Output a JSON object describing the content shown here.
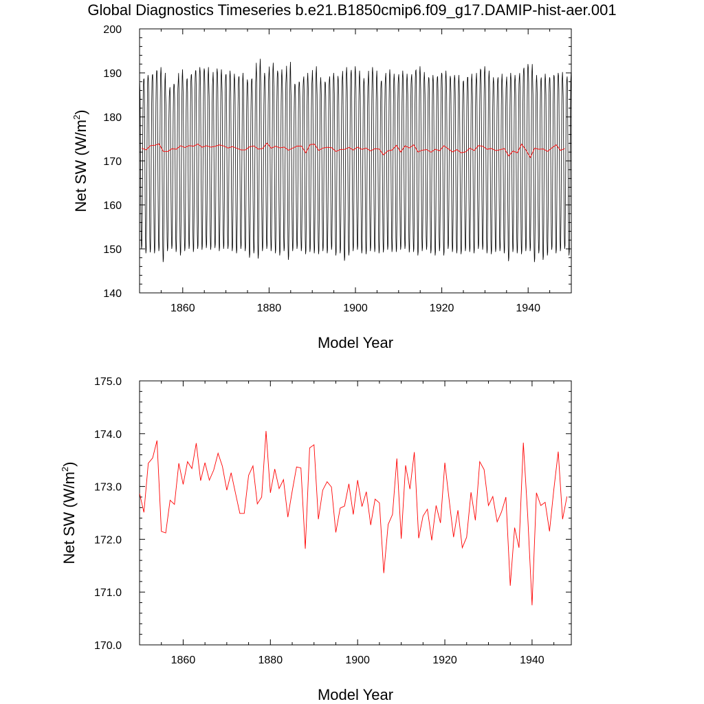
{
  "title": "Global Diagnostics Timeseries b.e21.B1850cmip6.f09_g17.DAMIP-hist-aer.001",
  "chart_data": [
    {
      "type": "line",
      "xlabel": "Model Year",
      "ylabel": "Net SW (W/m",
      "ylabel_sup": "2",
      "ylabel_close": ")",
      "xlim": [
        1850,
        1950
      ],
      "ylim": [
        140,
        200
      ],
      "xticks": [
        1860,
        1880,
        1900,
        1920,
        1940
      ],
      "yticks": [
        140,
        150,
        160,
        170,
        180,
        190,
        200
      ],
      "ytick_labels": [
        "140",
        "150",
        "160",
        "170",
        "180",
        "190",
        "200"
      ],
      "series": [
        {
          "color": "#000000",
          "kind": "monthly",
          "years": [
            1850,
            1851,
            1852,
            1853,
            1854,
            1855,
            1856,
            1857,
            1858,
            1859,
            1860,
            1861,
            1862,
            1863,
            1864,
            1865,
            1866,
            1867,
            1868,
            1869,
            1870,
            1871,
            1872,
            1873,
            1874,
            1875,
            1876,
            1877,
            1878,
            1879,
            1880,
            1881,
            1882,
            1883,
            1884,
            1885,
            1886,
            1887,
            1888,
            1889,
            1890,
            1891,
            1892,
            1893,
            1894,
            1895,
            1896,
            1897,
            1898,
            1899,
            1900,
            1901,
            1902,
            1903,
            1904,
            1905,
            1906,
            1907,
            1908,
            1909,
            1910,
            1911,
            1912,
            1913,
            1914,
            1915,
            1916,
            1917,
            1918,
            1919,
            1920,
            1921,
            1922,
            1923,
            1924,
            1925,
            1926,
            1927,
            1928,
            1929,
            1930,
            1931,
            1932,
            1933,
            1934,
            1935,
            1936,
            1937,
            1938,
            1939,
            1940,
            1941,
            1942,
            1943,
            1944,
            1945,
            1946,
            1947,
            1948,
            1949
          ],
          "maxima": [
            188.5,
            189.5,
            189.5,
            190.5,
            191.3,
            190.0,
            186.0,
            187.5,
            188.0,
            190.8,
            188.5,
            189.5,
            190.5,
            191.3,
            191.0,
            191.3,
            188.5,
            191.0,
            190.8,
            189.5,
            190.5,
            189.8,
            189.0,
            190.0,
            188.5,
            188.5,
            189.5,
            193.2,
            190.0,
            189.8,
            192.3,
            190.5,
            190.8,
            189.2,
            192.5,
            187.5,
            188.0,
            188.5,
            190.0,
            188.5,
            191.5,
            189.0,
            188.0,
            188.5,
            190.0,
            189.3,
            189.0,
            191.3,
            190.0,
            191.5,
            190.5,
            188.8,
            188.5,
            191.3,
            190.5,
            188.0,
            189.0,
            190.8,
            189.8,
            189.0,
            190.5,
            189.8,
            189.0,
            190.5,
            191.5,
            190.2,
            189.0,
            189.5,
            189.0,
            190.0,
            190.5,
            189.3,
            189.5,
            189.5,
            188.0,
            189.0,
            189.8,
            188.5,
            190.8,
            191.5,
            190.5,
            189.0,
            188.5,
            189.8,
            188.0,
            190.0,
            189.5,
            189.0,
            190.8,
            192.0,
            192.0,
            189.5,
            188.5,
            189.8,
            189.0,
            189.5,
            190.0,
            190.2,
            188.5,
            190.0
          ],
          "minima": [
            150.0,
            149.0,
            149.2,
            149.0,
            149.5,
            147.0,
            149.5,
            150.0,
            149.3,
            148.5,
            149.5,
            150.0,
            149.3,
            150.0,
            149.8,
            150.2,
            149.8,
            150.2,
            149.5,
            150.0,
            150.0,
            149.5,
            149.0,
            150.0,
            149.5,
            148.0,
            149.0,
            147.8,
            149.5,
            150.0,
            149.5,
            149.0,
            148.5,
            149.5,
            147.5,
            149.5,
            150.0,
            149.5,
            148.8,
            149.3,
            149.0,
            148.8,
            149.5,
            149.0,
            149.8,
            148.5,
            149.0,
            147.3,
            148.5,
            149.5,
            149.8,
            149.0,
            148.8,
            149.5,
            149.3,
            149.0,
            149.2,
            149.8,
            149.3,
            149.3,
            149.8,
            150.0,
            149.2,
            149.3,
            148.5,
            149.5,
            149.8,
            149.0,
            148.5,
            149.5,
            148.5,
            150.0,
            149.3,
            149.0,
            148.8,
            149.5,
            149.3,
            149.0,
            150.0,
            149.8,
            149.0,
            148.8,
            149.3,
            149.5,
            149.0,
            147.2,
            149.3,
            149.0,
            148.8,
            149.5,
            149.5,
            147.0,
            149.0,
            147.5,
            148.5,
            149.8,
            149.0,
            149.5,
            150.0,
            148.5
          ]
        },
        {
          "color": "#ff0000",
          "kind": "annual",
          "values": [
            172.87,
            172.51,
            173.44,
            173.54,
            173.87,
            172.15,
            172.12,
            172.74,
            172.66,
            173.44,
            173.04,
            173.47,
            173.34,
            173.82,
            173.11,
            173.45,
            173.12,
            173.31,
            173.63,
            173.38,
            172.93,
            173.26,
            172.87,
            172.49,
            172.49,
            173.21,
            173.39,
            172.67,
            172.8,
            174.05,
            172.88,
            173.33,
            172.96,
            173.13,
            172.42,
            172.91,
            173.37,
            173.35,
            171.82,
            173.73,
            173.79,
            172.38,
            172.93,
            173.09,
            172.99,
            172.13,
            172.59,
            172.63,
            173.05,
            172.47,
            173.12,
            172.62,
            172.9,
            172.27,
            172.76,
            172.69,
            171.36,
            172.28,
            172.47,
            173.53,
            172.01,
            173.4,
            172.95,
            173.65,
            172.02,
            172.44,
            172.57,
            171.98,
            172.64,
            172.31,
            173.45,
            172.74,
            172.04,
            172.55,
            171.84,
            172.04,
            172.89,
            172.36,
            173.47,
            173.32,
            172.64,
            172.81,
            172.33,
            172.52,
            172.8,
            171.12,
            172.22,
            171.84,
            173.83,
            172.45,
            170.75,
            172.88,
            172.64,
            172.7,
            172.15,
            172.95,
            173.66,
            172.38,
            172.81
          ]
        }
      ]
    },
    {
      "type": "line",
      "xlabel": "Model Year",
      "ylabel": "Net SW (W/m",
      "ylabel_sup": "2",
      "ylabel_close": ")",
      "xlim": [
        1850,
        1949
      ],
      "ylim": [
        170,
        175
      ],
      "xticks": [
        1860,
        1880,
        1900,
        1920,
        1940
      ],
      "yticks": [
        170,
        171,
        172,
        173,
        174,
        175
      ],
      "ytick_labels": [
        "170.0",
        "171.0",
        "172.0",
        "173.0",
        "174.0",
        "175.0"
      ],
      "series": [
        {
          "color": "#ff0000",
          "kind": "annual",
          "values": [
            172.87,
            172.51,
            173.44,
            173.54,
            173.87,
            172.15,
            172.12,
            172.74,
            172.66,
            173.44,
            173.04,
            173.47,
            173.34,
            173.82,
            173.11,
            173.45,
            173.12,
            173.31,
            173.63,
            173.38,
            172.93,
            173.26,
            172.87,
            172.49,
            172.49,
            173.21,
            173.39,
            172.67,
            172.8,
            174.05,
            172.88,
            173.33,
            172.96,
            173.13,
            172.42,
            172.91,
            173.37,
            173.35,
            171.82,
            173.73,
            173.79,
            172.38,
            172.93,
            173.09,
            172.99,
            172.13,
            172.59,
            172.63,
            173.05,
            172.47,
            173.12,
            172.62,
            172.9,
            172.27,
            172.76,
            172.69,
            171.36,
            172.28,
            172.47,
            173.53,
            172.01,
            173.4,
            172.95,
            173.65,
            172.02,
            172.44,
            172.57,
            171.98,
            172.64,
            172.31,
            173.45,
            172.74,
            172.04,
            172.55,
            171.84,
            172.04,
            172.89,
            172.36,
            173.47,
            173.32,
            172.64,
            172.81,
            172.33,
            172.52,
            172.8,
            171.12,
            172.22,
            171.84,
            173.83,
            172.45,
            170.75,
            172.88,
            172.64,
            172.7,
            172.15,
            172.95,
            173.66,
            172.38,
            172.81
          ]
        }
      ]
    }
  ]
}
